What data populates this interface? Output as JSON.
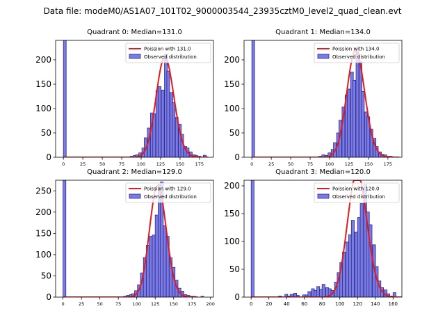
{
  "figure": {
    "suptitle": "Data file: modeM0/AS1A07_101T02_9000003544_23935cztM0_level2_quad_clean.evt"
  },
  "colors": {
    "bar_fill": "#7b7be6",
    "bar_edge": "#2b2b8a",
    "poisson_line": "#e31a1c"
  },
  "chart_data": [
    {
      "type": "bar",
      "title": "Quadrant 0: Median=131.0",
      "legend": [
        "Poission with 131.0",
        "Observed distribution"
      ],
      "legend_location": "top-right",
      "median": 131.0,
      "xlim": [
        -10,
        193
      ],
      "ylim": [
        0,
        240
      ],
      "xticks": [
        0,
        25,
        50,
        75,
        100,
        125,
        150,
        175
      ],
      "yticks": [
        0,
        50,
        100,
        150,
        200
      ],
      "bin_width": 3.6,
      "bins": [
        [
          0,
          240
        ],
        [
          86,
          2
        ],
        [
          90,
          4
        ],
        [
          93,
          5
        ],
        [
          97,
          9
        ],
        [
          101,
          19
        ],
        [
          104,
          40
        ],
        [
          108,
          60
        ],
        [
          112,
          91
        ],
        [
          115,
          89
        ],
        [
          119,
          137
        ],
        [
          122,
          145
        ],
        [
          126,
          138
        ],
        [
          130,
          212
        ],
        [
          133,
          177
        ],
        [
          137,
          133
        ],
        [
          140,
          112
        ],
        [
          144,
          82
        ],
        [
          148,
          68
        ],
        [
          151,
          47
        ],
        [
          155,
          22
        ],
        [
          158,
          19
        ],
        [
          162,
          11
        ],
        [
          166,
          5
        ],
        [
          169,
          4
        ],
        [
          173,
          2
        ],
        [
          180,
          4
        ]
      ]
    },
    {
      "type": "bar",
      "title": "Quadrant 1: Median=134.0",
      "legend": [
        "Poission with 134.0",
        "Observed distribution"
      ],
      "legend_location": "top-right",
      "median": 134.0,
      "xlim": [
        -10,
        193
      ],
      "ylim": [
        0,
        240
      ],
      "xticks": [
        0,
        25,
        50,
        75,
        100,
        125,
        150,
        175
      ],
      "yticks": [
        0,
        50,
        100,
        150,
        200
      ],
      "bin_width": 3.6,
      "bins": [
        [
          0,
          240
        ],
        [
          86,
          2
        ],
        [
          90,
          5
        ],
        [
          94,
          4
        ],
        [
          98,
          9
        ],
        [
          102,
          16
        ],
        [
          105,
          30
        ],
        [
          109,
          50
        ],
        [
          112,
          76
        ],
        [
          116,
          103
        ],
        [
          120,
          128
        ],
        [
          123,
          140
        ],
        [
          127,
          175
        ],
        [
          130,
          158
        ],
        [
          134,
          217
        ],
        [
          138,
          196
        ],
        [
          141,
          135
        ],
        [
          145,
          93
        ],
        [
          148,
          83
        ],
        [
          152,
          58
        ],
        [
          156,
          39
        ],
        [
          159,
          22
        ],
        [
          163,
          11
        ],
        [
          166,
          6
        ],
        [
          170,
          5
        ],
        [
          174,
          2
        ],
        [
          177,
          2
        ]
      ]
    },
    {
      "type": "bar",
      "title": "Quadrant 2: Median=129.0",
      "legend": [
        "Poission with 129.0",
        "Observed distribution"
      ],
      "legend_location": "top-right",
      "median": 129.0,
      "xlim": [
        -10,
        204
      ],
      "ylim": [
        0,
        275
      ],
      "xticks": [
        0,
        25,
        50,
        75,
        100,
        125,
        150,
        175,
        200
      ],
      "yticks": [
        0,
        50,
        100,
        150,
        200,
        250
      ],
      "bin_width": 3.9,
      "bins": [
        [
          0,
          275
        ],
        [
          82,
          2
        ],
        [
          86,
          4
        ],
        [
          90,
          6
        ],
        [
          93,
          8
        ],
        [
          97,
          15
        ],
        [
          101,
          29
        ],
        [
          105,
          57
        ],
        [
          109,
          93
        ],
        [
          113,
          122
        ],
        [
          117,
          143
        ],
        [
          121,
          146
        ],
        [
          125,
          193
        ],
        [
          129,
          265
        ],
        [
          132,
          271
        ],
        [
          136,
          168
        ],
        [
          140,
          143
        ],
        [
          144,
          93
        ],
        [
          148,
          70
        ],
        [
          152,
          40
        ],
        [
          156,
          21
        ],
        [
          160,
          14
        ],
        [
          164,
          6
        ],
        [
          168,
          4
        ],
        [
          172,
          2
        ],
        [
          176,
          2
        ],
        [
          187,
          2
        ]
      ]
    },
    {
      "type": "bar",
      "title": "Quadrant 3: Median=120.0",
      "legend": [
        "Poission with 120.0",
        "Observed distribution"
      ],
      "legend_location": "top-right",
      "median": 120.0,
      "xlim": [
        -8,
        170
      ],
      "ylim": [
        0,
        210
      ],
      "xticks": [
        0,
        20,
        40,
        60,
        80,
        100,
        120,
        140,
        160
      ],
      "yticks": [
        0,
        50,
        100,
        150,
        200
      ],
      "bin_width": 3.3,
      "bins": [
        [
          0,
          210
        ],
        [
          31,
          2
        ],
        [
          38,
          5
        ],
        [
          41,
          2
        ],
        [
          44,
          5
        ],
        [
          48,
          7
        ],
        [
          51,
          3
        ],
        [
          58,
          4
        ],
        [
          61,
          4
        ],
        [
          64,
          10
        ],
        [
          68,
          15
        ],
        [
          71,
          12
        ],
        [
          74,
          19
        ],
        [
          77,
          14
        ],
        [
          80,
          23
        ],
        [
          84,
          17
        ],
        [
          87,
          15
        ],
        [
          90,
          12
        ],
        [
          94,
          27
        ],
        [
          97,
          44
        ],
        [
          100,
          62
        ],
        [
          103,
          81
        ],
        [
          107,
          99
        ],
        [
          110,
          112
        ],
        [
          113,
          138
        ],
        [
          117,
          117
        ],
        [
          120,
          143
        ],
        [
          123,
          168
        ],
        [
          127,
          202
        ],
        [
          130,
          153
        ],
        [
          133,
          130
        ],
        [
          137,
          94
        ],
        [
          140,
          55
        ],
        [
          143,
          29
        ],
        [
          146,
          17
        ],
        [
          150,
          13
        ],
        [
          153,
          6
        ],
        [
          156,
          2
        ],
        [
          160,
          8
        ]
      ]
    }
  ]
}
